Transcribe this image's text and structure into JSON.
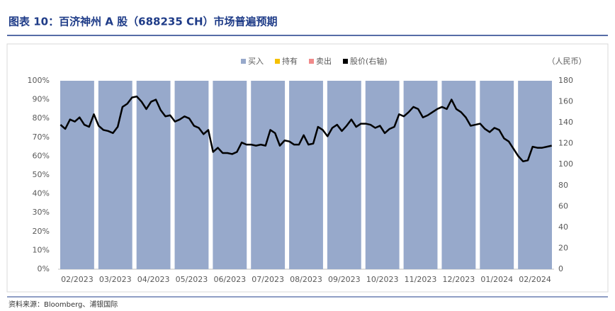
{
  "chart_data": {
    "type": "bar",
    "stacked": true,
    "title": "图表 10：百济神州 A 股（688235 CH）市场普遍预期",
    "source": "资料来源：Bloomberg、浦银国际",
    "y2_label": "（人民币）",
    "categories": [
      "02/2023",
      "03/2023",
      "04/2023",
      "05/2023",
      "06/2023",
      "07/2023",
      "08/2023",
      "09/2023",
      "10/2023",
      "11/2023",
      "12/2023",
      "01/2024",
      "02/2024"
    ],
    "series": [
      {
        "name": "买入",
        "color": "#97a9cb",
        "values": [
          100,
          100,
          100,
          100,
          100,
          100,
          100,
          100,
          100,
          100,
          100,
          100,
          100
        ]
      },
      {
        "name": "持有",
        "color": "#f5c000",
        "values": [
          0,
          0,
          0,
          0,
          0,
          0,
          0,
          0,
          0,
          0,
          0,
          0,
          0
        ]
      },
      {
        "name": "卖出",
        "color": "#f08a8a",
        "values": [
          0,
          0,
          0,
          0,
          0,
          0,
          0,
          0,
          0,
          0,
          0,
          0,
          0
        ]
      },
      {
        "name": "股价(右轴)",
        "color": "#000000",
        "type": "line",
        "axis": "y2",
        "x": [
          "02/2023",
          "02/2023",
          "02/2023",
          "02/2023",
          "02/2023",
          "02/2023",
          "02/2023",
          "02/2023",
          "03/2023",
          "03/2023",
          "03/2023",
          "03/2023",
          "03/2023",
          "03/2023",
          "03/2023",
          "03/2023",
          "04/2023",
          "04/2023",
          "04/2023",
          "04/2023",
          "04/2023",
          "04/2023",
          "04/2023",
          "04/2023",
          "05/2023",
          "05/2023",
          "05/2023",
          "05/2023",
          "05/2023",
          "05/2023",
          "05/2023",
          "05/2023",
          "06/2023",
          "06/2023",
          "06/2023",
          "06/2023",
          "06/2023",
          "06/2023",
          "06/2023",
          "06/2023",
          "07/2023",
          "07/2023",
          "07/2023",
          "07/2023",
          "07/2023",
          "07/2023",
          "07/2023",
          "07/2023",
          "08/2023",
          "08/2023",
          "08/2023",
          "08/2023",
          "08/2023",
          "08/2023",
          "08/2023",
          "08/2023",
          "09/2023",
          "09/2023",
          "09/2023",
          "09/2023",
          "09/2023",
          "09/2023",
          "09/2023",
          "09/2023",
          "10/2023",
          "10/2023",
          "10/2023",
          "10/2023",
          "10/2023",
          "10/2023",
          "10/2023",
          "10/2023",
          "11/2023",
          "11/2023",
          "11/2023",
          "11/2023",
          "11/2023",
          "11/2023",
          "11/2023",
          "11/2023",
          "12/2023",
          "12/2023",
          "12/2023",
          "12/2023",
          "12/2023",
          "12/2023",
          "12/2023",
          "12/2023",
          "01/2024",
          "01/2024",
          "01/2024",
          "01/2024",
          "01/2024",
          "01/2024",
          "01/2024",
          "01/2024",
          "02/2024",
          "02/2024",
          "02/2024",
          "02/2024",
          "02/2024",
          "02/2024",
          "02/2024",
          "02/2024"
        ],
        "values": [
          138,
          134,
          143,
          141,
          145,
          138,
          136,
          148,
          137,
          133,
          132,
          130,
          136,
          155,
          158,
          164,
          165,
          160,
          153,
          160,
          162,
          152,
          146,
          147,
          141,
          143,
          146,
          144,
          137,
          135,
          129,
          133,
          112,
          116,
          111,
          111,
          110,
          112,
          121,
          119,
          119,
          118,
          119,
          118,
          133,
          130,
          118,
          123,
          122,
          119,
          119,
          128,
          119,
          120,
          136,
          133,
          127,
          135,
          138,
          132,
          137,
          143,
          136,
          139,
          139,
          138,
          135,
          137,
          130,
          134,
          136,
          148,
          146,
          150,
          155,
          153,
          145,
          147,
          150,
          153,
          155,
          153,
          162,
          153,
          150,
          145,
          137,
          138,
          139,
          134,
          131,
          135,
          133,
          125,
          122,
          115,
          108,
          103,
          104,
          117,
          116,
          116,
          117,
          118
        ]
      }
    ],
    "ylim": [
      0,
      100
    ],
    "yticks": [
      {
        "value": 0,
        "label": "0%"
      },
      {
        "value": 10,
        "label": "10%"
      },
      {
        "value": 20,
        "label": "20%"
      },
      {
        "value": 30,
        "label": "30%"
      },
      {
        "value": 40,
        "label": "40%"
      },
      {
        "value": 50,
        "label": "50%"
      },
      {
        "value": 60,
        "label": "60%"
      },
      {
        "value": 70,
        "label": "70%"
      },
      {
        "value": 80,
        "label": "80%"
      },
      {
        "value": 90,
        "label": "90%"
      },
      {
        "value": 100,
        "label": "100%"
      }
    ],
    "y2lim": [
      0,
      180
    ],
    "y2ticks": [
      0,
      20,
      40,
      60,
      80,
      100,
      120,
      140,
      160,
      180
    ]
  }
}
